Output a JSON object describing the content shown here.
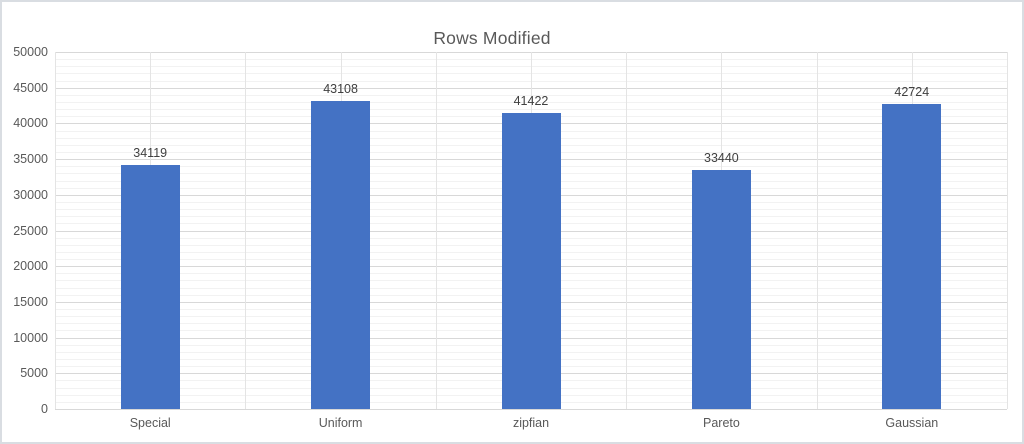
{
  "title": "Rows Modified",
  "chart_data": {
    "type": "bar",
    "title": "Rows Modified",
    "categories": [
      "Special",
      "Uniform",
      "zipfian",
      "Pareto",
      "Gaussian"
    ],
    "values": [
      34119,
      43108,
      41422,
      33440,
      42724
    ],
    "data_labels": [
      "34119",
      "43108",
      "41422",
      "33440",
      "42724"
    ],
    "xlabel": "",
    "ylabel": "",
    "ylim": [
      0,
      50000
    ],
    "y_major_interval": 5000,
    "y_minor_interval": 1000,
    "y_tick_labels": [
      "0",
      "5000",
      "10000",
      "15000",
      "20000",
      "25000",
      "30000",
      "35000",
      "40000",
      "45000",
      "50000"
    ],
    "grid": true,
    "legend_position": "none",
    "bar_color": "#4472C4",
    "colors": {
      "title_text": "#595959",
      "axis_text": "#595959",
      "data_label_text": "#404040",
      "major_gridline": "#d8d8d8",
      "minor_gridline": "#f2f2f2",
      "vertical_gridline": "#e4e4e4",
      "background": "#ffffff",
      "frame_border": "#d9dde2"
    }
  }
}
